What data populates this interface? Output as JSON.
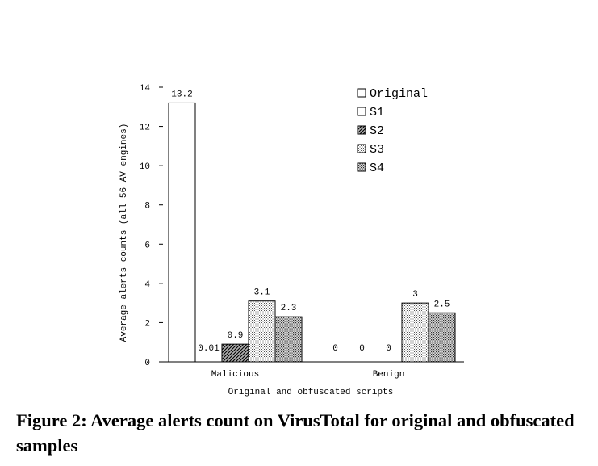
{
  "figure": {
    "caption": "Figure 2: Average alerts count on VirusTotal for original and obfuscated samples"
  },
  "chart_data": {
    "type": "bar",
    "categories": [
      "Malicious",
      "Benign"
    ],
    "series": [
      {
        "name": "Original",
        "values": [
          13.2,
          0
        ],
        "labels": [
          "13.2",
          "0"
        ]
      },
      {
        "name": "S1",
        "values": [
          0.01,
          0
        ],
        "labels": [
          "0.01",
          "0"
        ]
      },
      {
        "name": "S2",
        "values": [
          0.9,
          0
        ],
        "labels": [
          "0.9",
          "0"
        ]
      },
      {
        "name": "S3",
        "values": [
          3.1,
          3
        ],
        "labels": [
          "3.1",
          "3"
        ]
      },
      {
        "name": "S4",
        "values": [
          2.3,
          2.5
        ],
        "labels": [
          "2.3",
          "2.5"
        ]
      }
    ],
    "xlabel": "Original and obfuscated scripts",
    "ylabel": "Average alerts counts (all 56 AV engines)",
    "ylim": [
      0,
      14
    ],
    "yticks": [
      0,
      2,
      4,
      6,
      8,
      10,
      12,
      14
    ],
    "grid": false,
    "legend_position": "top-right"
  }
}
